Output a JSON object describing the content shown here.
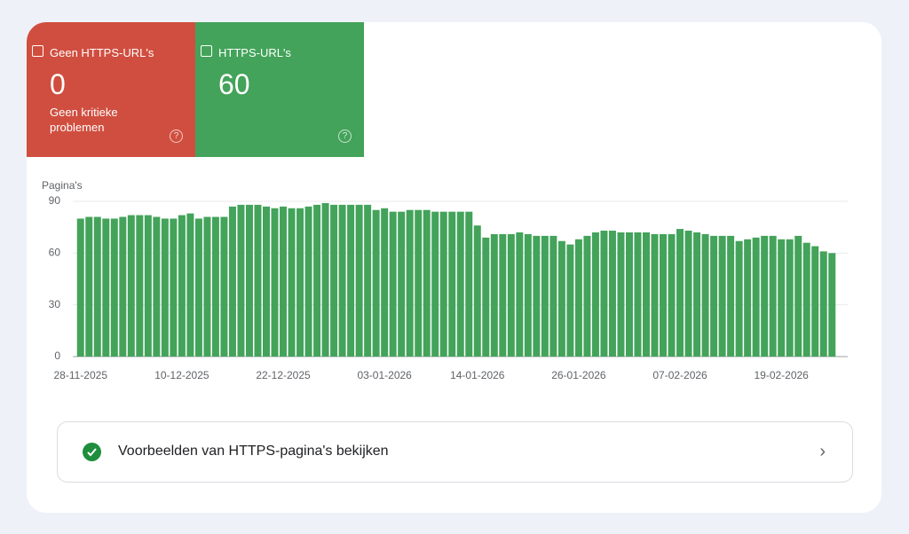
{
  "tiles": [
    {
      "label": "Geen HTTPS-URL's",
      "value": "0",
      "note": "Geen kritieke problemen"
    },
    {
      "label": "HTTPS-URL's",
      "value": "60"
    }
  ],
  "chart_data": {
    "type": "bar",
    "y_label": "Pagina's",
    "categories": [
      "28-11-2025",
      null,
      null,
      null,
      null,
      null,
      null,
      null,
      null,
      null,
      null,
      null,
      "10-12-2025",
      null,
      null,
      null,
      null,
      null,
      null,
      null,
      null,
      null,
      null,
      null,
      "22-12-2025",
      null,
      null,
      null,
      null,
      null,
      null,
      null,
      null,
      null,
      null,
      null,
      "03-01-2026",
      null,
      null,
      null,
      null,
      null,
      null,
      null,
      null,
      null,
      null,
      "14-01-2026",
      null,
      null,
      null,
      null,
      null,
      null,
      null,
      null,
      null,
      null,
      null,
      "26-01-2026",
      null,
      null,
      null,
      null,
      null,
      null,
      null,
      null,
      null,
      null,
      null,
      "07-02-2026",
      null,
      null,
      null,
      null,
      null,
      null,
      null,
      null,
      null,
      null,
      null,
      "19-02-2026",
      null,
      null,
      null,
      null,
      null,
      null
    ],
    "values": [
      80,
      81,
      81,
      80,
      80,
      81,
      82,
      82,
      82,
      81,
      80,
      80,
      82,
      83,
      80,
      81,
      81,
      81,
      87,
      88,
      88,
      88,
      87,
      86,
      87,
      86,
      86,
      87,
      88,
      89,
      88,
      88,
      88,
      88,
      88,
      85,
      86,
      84,
      84,
      85,
      85,
      85,
      84,
      84,
      84,
      84,
      84,
      76,
      69,
      71,
      71,
      71,
      72,
      71,
      70,
      70,
      70,
      67,
      65,
      68,
      70,
      72,
      73,
      73,
      72,
      72,
      72,
      72,
      71,
      71,
      71,
      74,
      73,
      72,
      71,
      70,
      70,
      70,
      67,
      68,
      69,
      70,
      70,
      68,
      68,
      70,
      66,
      64,
      61,
      60
    ],
    "color": "#43a35a",
    "ylim": [
      0,
      90
    ],
    "yticks": [
      0,
      30,
      60,
      90
    ],
    "grid": true
  },
  "link": "Voorbeelden van HTTPS-pagina's bekijken"
}
